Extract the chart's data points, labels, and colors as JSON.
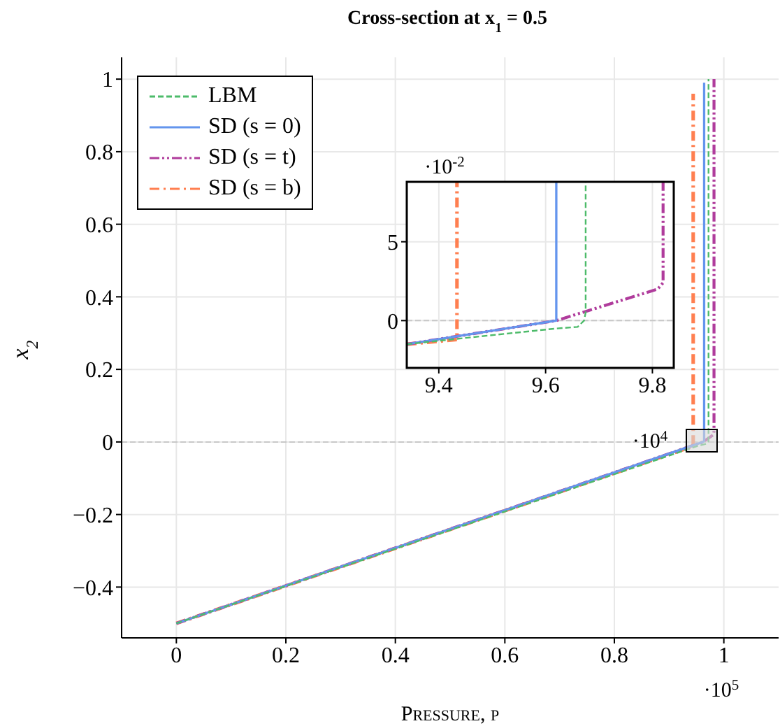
{
  "chart_data": [
    {
      "type": "line",
      "title": "Cross-section at x$_{1}$ = 0.5",
      "xlabel": "Pressure, p",
      "ylabel": "x$_{2}$",
      "annotations": [
        "·10$^{5}$"
      ],
      "xlim": [
        -0.1,
        1.1
      ],
      "xticks": [
        0,
        0.2,
        0.4,
        0.6,
        0.8,
        1
      ],
      "ylim": [
        -0.54,
        1.06
      ],
      "yticks": [
        -0.4,
        -0.2,
        0,
        0.2,
        0.4,
        0.6,
        0.8,
        1
      ],
      "grid": true,
      "legend": "top left",
      "marker": "none",
      "ref_lines": [
        {
          "axis": "y",
          "value": 0,
          "color": "#c8c8c8",
          "line_style": "dashed"
        }
      ],
      "series": [
        {
          "name": "LBM",
          "color": "#4dbb6a",
          "line_style": "dashed",
          "x": [
            0,
            0.95,
            0.968,
            0.972,
            0.972
          ],
          "values": [
            -0.5,
            -0.012,
            -0.005,
            0.002,
            1.0
          ]
        },
        {
          "name": "SD (s = 0)",
          "color": "#6495ed",
          "line_style": "solid",
          "x": [
            0,
            0.962,
            0.964,
            0.964
          ],
          "values": [
            -0.5,
            0,
            0.003,
            0.99
          ]
        },
        {
          "name": "SD (s = t)",
          "color": "#b03c9c",
          "line_style": "dashdotdot",
          "x": [
            0,
            0.962,
            0.981,
            0.982,
            0.982
          ],
          "values": [
            -0.5,
            0,
            0.02,
            0.03,
            1.0
          ]
        },
        {
          "name": "SD (s = b)",
          "color": "#ff7f50",
          "line_style": "dashdot",
          "x": [
            0,
            0.943,
            0.944,
            0.944
          ],
          "values": [
            -0.5,
            -0.012,
            -0.01,
            0.96
          ]
        }
      ]
    },
    {
      "type": "line",
      "annotations": [
        "·10$^{-2}$",
        "·10$^{4}$"
      ],
      "xlim": [
        9.34,
        9.84
      ],
      "xticks": [
        9.4,
        9.6,
        9.8
      ],
      "ylim": [
        -3,
        8.8
      ],
      "yticks": [
        0,
        5
      ],
      "grid": true,
      "marker": "none",
      "ref_lines": [
        {
          "axis": "y",
          "value": 0,
          "color": "#c8c8c8",
          "line_style": "dashed"
        }
      ],
      "series": [
        {
          "color": "#4dbb6a",
          "line_style": "dashed",
          "x": [
            9.34,
            9.45,
            9.62,
            9.66,
            9.672,
            9.675,
            9.675
          ],
          "values": [
            -1.5,
            -1.1,
            -0.5,
            -0.4,
            0,
            0.5,
            8.8
          ]
        },
        {
          "color": "#6495ed",
          "line_style": "solid",
          "x": [
            9.34,
            9.62,
            9.62
          ],
          "values": [
            -1.5,
            0,
            8.8
          ]
        },
        {
          "color": "#b03c9c",
          "line_style": "dashdotdot",
          "x": [
            9.34,
            9.62,
            9.81,
            9.82,
            9.82
          ],
          "values": [
            -1.5,
            0,
            2,
            2.4,
            8.8
          ]
        },
        {
          "color": "#ff7f50",
          "line_style": "dashdot",
          "x": [
            9.34,
            9.434,
            9.434
          ],
          "values": [
            -1.5,
            -1.2,
            8.8
          ]
        }
      ]
    }
  ]
}
